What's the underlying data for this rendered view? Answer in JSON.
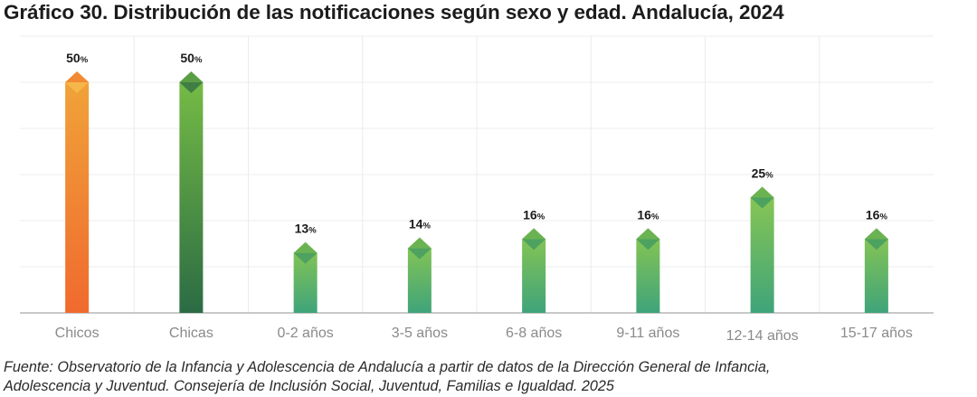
{
  "title": "Gráfico 30. Distribución de las notificaciones según sexo y edad. Andalucía, 2024",
  "source": {
    "line1": "Fuente: Observatorio de la Infancia y Adolescencia de Andalucía a partir de datos de la Dirección General de Infancia,",
    "line2": "Adolescencia y Juventud. Consejería de Inclusión Social, Juventud, Familias e Igualdad. 2025"
  },
  "chart_data": {
    "type": "bar",
    "categories": [
      "Chicos",
      "Chicas",
      "0-2 años",
      "3-5 años",
      "6-8 años",
      "9-11 años",
      "12-14 años",
      "15-17 años"
    ],
    "values": [
      50,
      50,
      13,
      14,
      16,
      16,
      25,
      16
    ],
    "value_suffix": "%",
    "ylim": [
      0,
      60
    ],
    "grid": true,
    "colors": {
      "Chicos": [
        "#f0a53a",
        "#f06a2e"
      ],
      "Chicas": [
        "#78bf45",
        "#2b6b44"
      ],
      "age": [
        "#8dc850",
        "#3fa47a"
      ]
    }
  }
}
